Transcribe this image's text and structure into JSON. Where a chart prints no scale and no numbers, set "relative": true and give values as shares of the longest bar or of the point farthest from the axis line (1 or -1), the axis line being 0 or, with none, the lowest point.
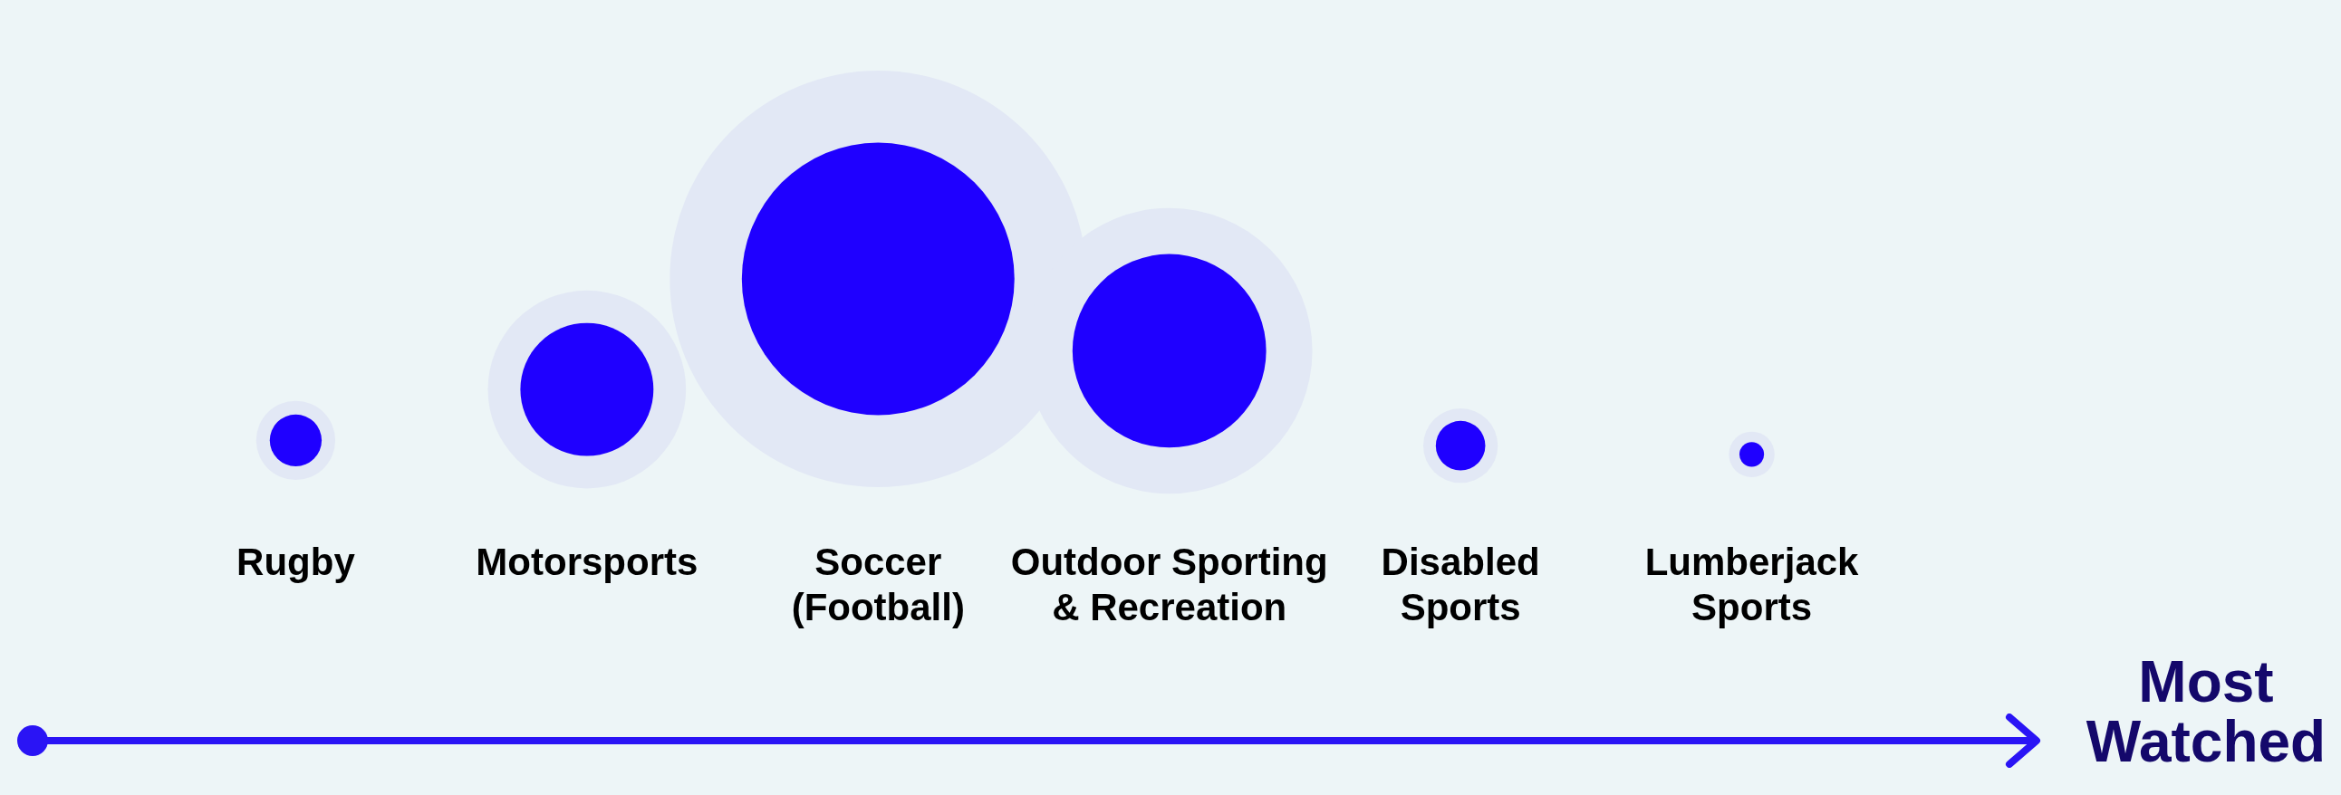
{
  "chart_data": {
    "type": "bubble",
    "relative": true,
    "xlabel": "Most Watched",
    "categories": [
      "Rugby",
      "Motorsports",
      "Soccer (Football)",
      "Outdoor Sporting & Recreation",
      "Disabled Sports",
      "Lumberjack Sports"
    ],
    "series": [
      {
        "color": "#e2e8f5",
        "values": [
          0.08,
          0.37,
          1,
          0.59,
          0.05,
          0
        ],
        "sizes": [
          0.036,
          0.226,
          1,
          0.471,
          0.032,
          0.012
        ]
      },
      {
        "color": "#1f00ff",
        "values": [
          0.08,
          0.37,
          1,
          0.59,
          0.05,
          0
        ],
        "sizes": [
          0.0155,
          0.102,
          0.428,
          0.216,
          0.0141,
          0.0035
        ]
      }
    ]
  }
}
